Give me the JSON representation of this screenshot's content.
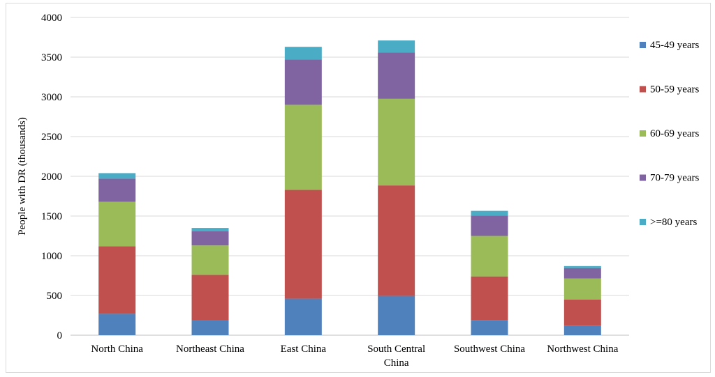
{
  "chart_data": {
    "type": "bar",
    "stacked": true,
    "title": "",
    "xlabel": "",
    "ylabel": "People with DR (thousands)",
    "ylim": [
      0,
      4000
    ],
    "yticks": [
      0,
      500,
      1000,
      1500,
      2000,
      2500,
      3000,
      3500,
      4000
    ],
    "grid": "horizontal",
    "legend_position": "right",
    "categories": [
      [
        "North China"
      ],
      [
        "Northeast China"
      ],
      [
        "East China"
      ],
      [
        "South Central",
        "China"
      ],
      [
        "Southwest China"
      ],
      [
        "Northwest China"
      ]
    ],
    "series": [
      {
        "name": "45-49 years",
        "color": "#4f81bd",
        "values": [
          270,
          185,
          460,
          495,
          190,
          120
        ]
      },
      {
        "name": "50-59 years",
        "color": "#c0504d",
        "values": [
          850,
          575,
          1370,
          1390,
          550,
          330
        ]
      },
      {
        "name": "60-69 years",
        "color": "#9bbb59",
        "values": [
          560,
          370,
          1070,
          1090,
          510,
          265
        ]
      },
      {
        "name": "70-79 years",
        "color": "#8064a2",
        "values": [
          290,
          180,
          570,
          585,
          255,
          130
        ]
      },
      {
        "name": ">=80 years",
        "color": "#4bacc6",
        "values": [
          70,
          40,
          160,
          150,
          60,
          25
        ]
      }
    ]
  }
}
